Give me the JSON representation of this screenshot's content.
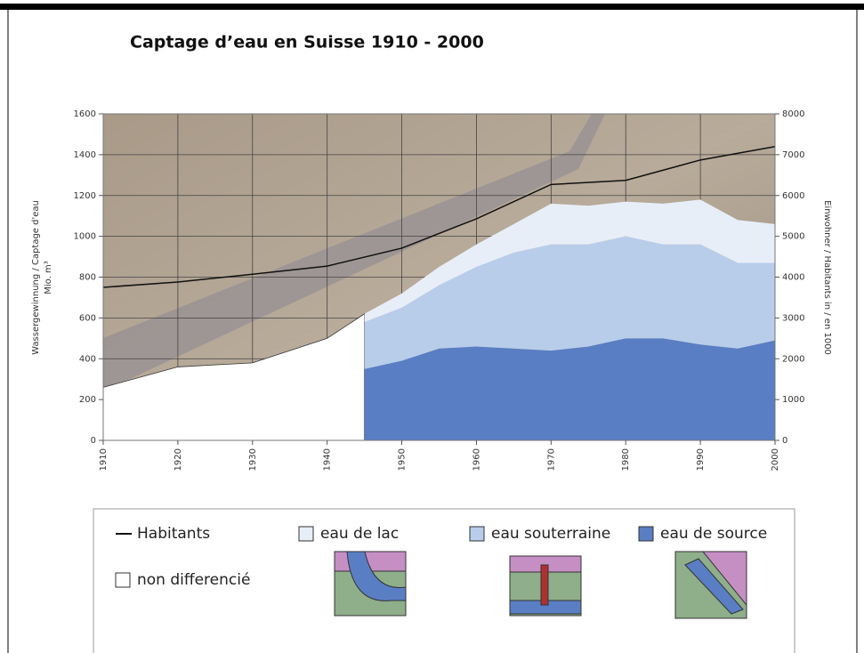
{
  "chart_data": {
    "type": "area",
    "title": "Captage d’eau en Suisse  1910 - 2000",
    "ylabel": [
      "Wassergewinnung / Captage d'eau",
      "Mio. m³"
    ],
    "y2label": "Einwohner / Habitants in / en 1000",
    "xlim": [
      1910,
      2000
    ],
    "xticks": [
      1910,
      1920,
      1930,
      1940,
      1950,
      1960,
      1970,
      1980,
      1990,
      2000
    ],
    "ylim": [
      0,
      1600
    ],
    "yticks": [
      0,
      200,
      400,
      600,
      800,
      1000,
      1200,
      1400,
      1600
    ],
    "y2lim": [
      0,
      8000
    ],
    "y2ticks": [
      0,
      1000,
      2000,
      3000,
      4000,
      5000,
      6000,
      7000,
      8000
    ],
    "grid": true,
    "series": [
      {
        "name": "non differencié",
        "color": "#ffffff",
        "x": [
          1910,
          1920,
          1930,
          1940,
          1945
        ],
        "values": [
          260,
          360,
          380,
          500,
          620
        ]
      },
      {
        "name": "eau de source",
        "color": "#5a7ec4",
        "stack": true,
        "x": [
          1945,
          1950,
          1955,
          1960,
          1965,
          1970,
          1975,
          1980,
          1985,
          1990,
          1995,
          2000
        ],
        "values": [
          350,
          390,
          450,
          460,
          450,
          440,
          460,
          500,
          500,
          470,
          450,
          490
        ]
      },
      {
        "name": "eau souterraine",
        "color": "#b7cdea",
        "stack": true,
        "x": [
          1945,
          1950,
          1955,
          1960,
          1965,
          1970,
          1975,
          1980,
          1985,
          1990,
          1995,
          2000
        ],
        "values": [
          230,
          260,
          310,
          390,
          470,
          520,
          500,
          500,
          460,
          490,
          420,
          380
        ]
      },
      {
        "name": "eau de lac",
        "color": "#e8eef8",
        "stack": true,
        "x": [
          1945,
          1950,
          1955,
          1960,
          1965,
          1970,
          1975,
          1980,
          1985,
          1990,
          1995,
          2000
        ],
        "values": [
          40,
          70,
          90,
          110,
          140,
          200,
          190,
          170,
          200,
          220,
          210,
          190
        ]
      },
      {
        "name": "Habitants",
        "type": "line",
        "axis": "y2",
        "color": "#111111",
        "x": [
          1910,
          1920,
          1930,
          1940,
          1950,
          1960,
          1970,
          1980,
          1990,
          2000
        ],
        "values": [
          3750,
          3880,
          4070,
          4270,
          4710,
          5430,
          6270,
          6370,
          6870,
          7200
        ]
      }
    ]
  }
}
